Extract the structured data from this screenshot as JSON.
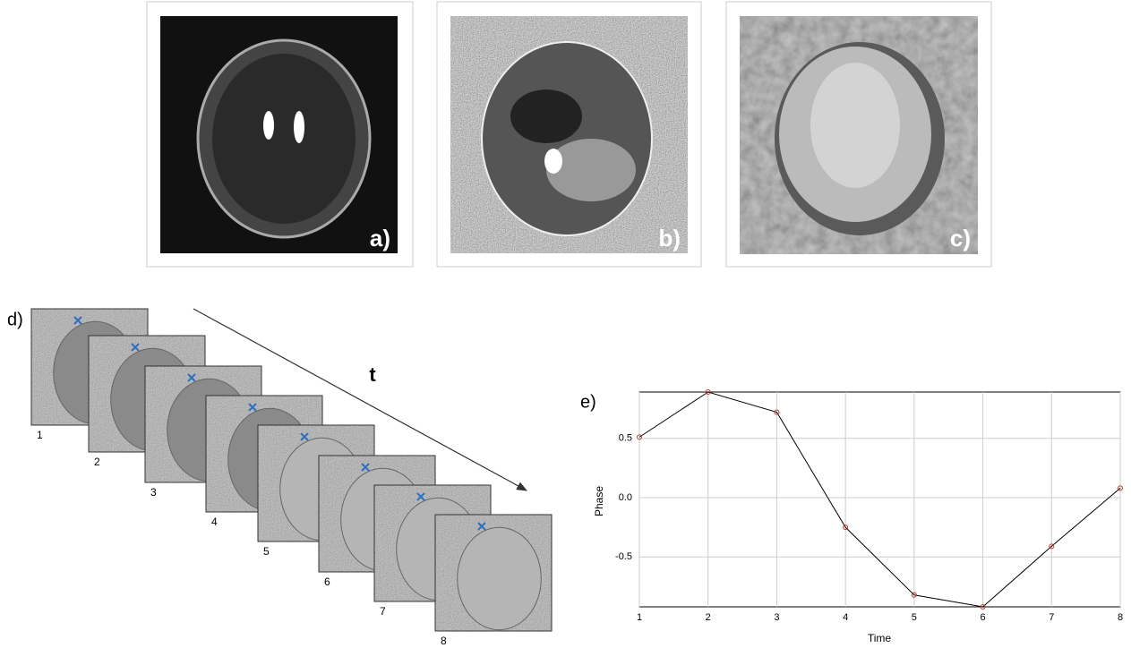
{
  "panels": {
    "labels": [
      "a)",
      "b)",
      "c)"
    ]
  },
  "sequence": {
    "label": "d)",
    "axis_label": "t",
    "frames": [
      "1",
      "2",
      "3",
      "4",
      "5",
      "6",
      "7",
      "8"
    ]
  },
  "plot_label": "e)",
  "chart_data": {
    "type": "line",
    "x_label": "Time",
    "y_label": "Phase",
    "x": [
      1,
      2,
      3,
      4,
      5,
      6,
      7,
      8
    ],
    "series": [
      {
        "color": "#000000",
        "marker_color": "#c0392b",
        "values": [
          0.51,
          0.89,
          0.72,
          -0.25,
          -0.82,
          -0.92,
          -0.41,
          0.08
        ]
      }
    ],
    "xlim": [
      1,
      8
    ],
    "xticks": [
      1,
      2,
      3,
      4,
      5,
      6,
      7,
      8
    ],
    "ylim": [
      -0.92,
      0.89
    ],
    "yticks": [
      0.5,
      {
        "value": 0,
        "label": "0.0"
      },
      -0.5
    ],
    "grid": true
  }
}
